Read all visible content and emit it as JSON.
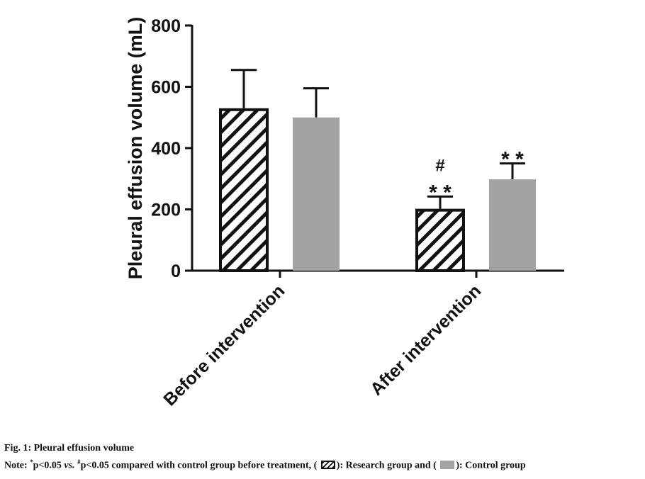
{
  "chart_data": {
    "type": "bar",
    "ylabel": "Pleural effusion volume (mL)",
    "ylim": [
      0,
      800
    ],
    "yticks": [
      0,
      200,
      400,
      600,
      800
    ],
    "categories": [
      "Before intervention",
      "After intervention"
    ],
    "series": [
      {
        "name": "Research group",
        "pattern": "hatch",
        "color": "#111111",
        "values": [
          530,
          202
        ],
        "errors": [
          125,
          40
        ],
        "annotations": [
          "",
          "**\n#"
        ]
      },
      {
        "name": "Control group",
        "pattern": "solid",
        "color": "#a3a3a3",
        "values": [
          500,
          298
        ],
        "errors": [
          95,
          52
        ],
        "annotations": [
          "",
          "**"
        ]
      }
    ]
  },
  "caption": {
    "title": "Fig. 1: Pleural effusion volume",
    "note_prefix": "Note: ",
    "star_sup": "*",
    "p_star": "p<0.05 ",
    "vs": "vs.",
    "hash_sup": "#",
    "p_hash": "p<0.05 compared with control group before treatment, (",
    "research_label": "): Research group and (",
    "control_label": "): Control group"
  }
}
